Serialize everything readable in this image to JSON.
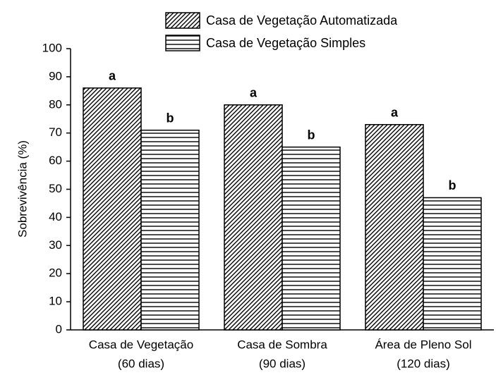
{
  "chart_data": {
    "type": "bar",
    "ylabel": "Sobrevivência (%)",
    "categories": [
      [
        "Casa de Vegetação",
        "(60 dias)"
      ],
      [
        "Casa de Sombra",
        "(90 dias)"
      ],
      [
        "Área de Pleno Sol",
        "(120 dias)"
      ]
    ],
    "series": [
      {
        "name": "Casa de Vegetação Automatizada",
        "color": "#000000",
        "hatch": "diagonal",
        "values": [
          86,
          80,
          73
        ],
        "annotations": [
          "a",
          "a",
          "a"
        ]
      },
      {
        "name": "Casa de Vegetação Simples",
        "color": "#000000",
        "hatch": "horizontal",
        "values": [
          71,
          65,
          47
        ],
        "annotations": [
          "b",
          "b",
          "b"
        ]
      }
    ],
    "ylim": [
      0,
      100
    ],
    "yticks": [
      0,
      10,
      20,
      30,
      40,
      50,
      60,
      70,
      80,
      90,
      100
    ],
    "grid": false,
    "legend": "top-right"
  }
}
